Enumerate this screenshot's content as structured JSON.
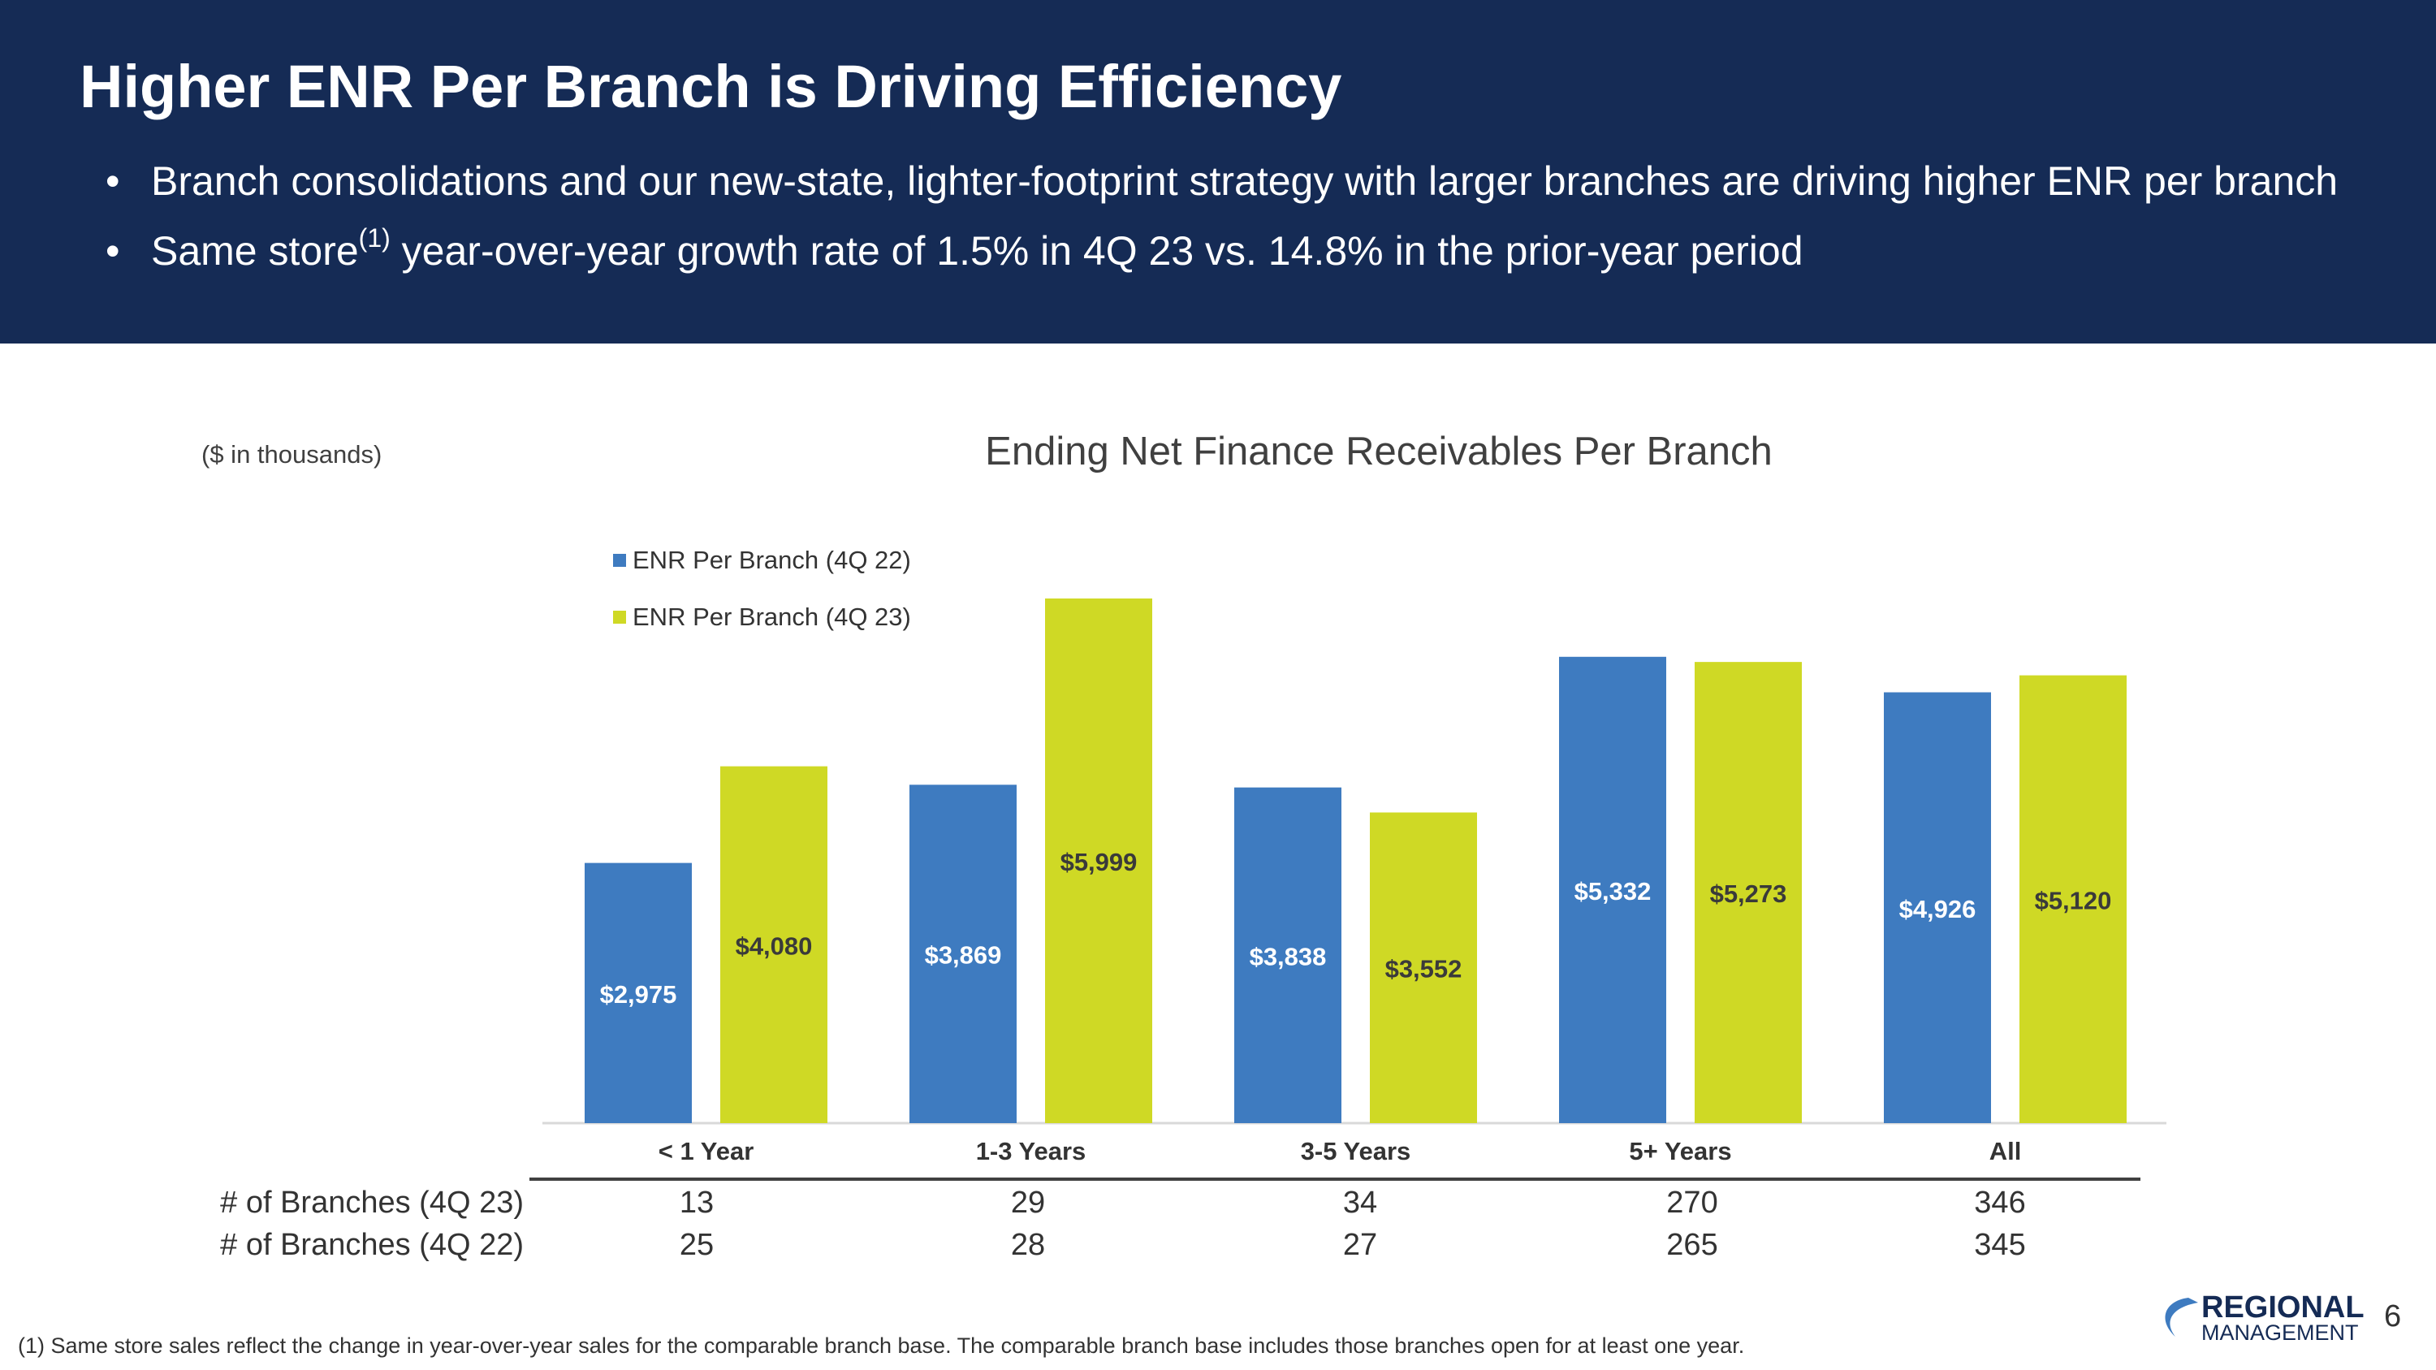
{
  "slide": {
    "title": "Higher ENR Per Branch is Driving Efficiency",
    "bullet1": "Branch consolidations and our new-state, lighter-footprint strategy with larger branches are driving higher ENR per branch",
    "bullet2_pre": "Same store",
    "bullet2_sup": "(1)",
    "bullet2_post": " year-over-year growth rate of 1.5% in 4Q 23 vs. 14.8% in the prior-year period",
    "units_note": "($ in thousands)",
    "footnote": "(1)  Same store sales reflect the change in year-over-year sales for the comparable branch base. The comparable branch base includes those branches open for at least one year.",
    "page_number": "6",
    "logo": {
      "line1": "REGIONAL",
      "line2": "MANAGEMENT"
    }
  },
  "table": {
    "row1_label": "# of Branches (4Q 23)",
    "row2_label": "# of Branches (4Q 22)",
    "row1": [
      "13",
      "29",
      "34",
      "270",
      "346"
    ],
    "row2": [
      "25",
      "28",
      "27",
      "265",
      "345"
    ]
  },
  "colors": {
    "header_bg": "#152b55",
    "series_4q22": "#3e7bc0",
    "series_4q23": "#cfd925"
  },
  "chart_data": {
    "type": "bar",
    "title": "Ending Net Finance Receivables Per Branch",
    "xlabel": "",
    "ylabel": "",
    "ylim": [
      0,
      6500
    ],
    "grid": false,
    "legend_position": "top-left",
    "categories": [
      "< 1 Year",
      "1-3 Years",
      "3-5 Years",
      "5+ Years",
      "All"
    ],
    "series": [
      {
        "name": "ENR Per Branch (4Q 22)",
        "values": [
          2975,
          3869,
          3838,
          5332,
          4926
        ],
        "labels": [
          "$2,975",
          "$3,869",
          "$3,838",
          "$5,332",
          "$4,926"
        ]
      },
      {
        "name": "ENR Per Branch (4Q 23)",
        "values": [
          4080,
          5999,
          3552,
          5273,
          5120
        ],
        "labels": [
          "$4,080",
          "$5,999",
          "$3,552",
          "$5,273",
          "$5,120"
        ]
      }
    ]
  }
}
